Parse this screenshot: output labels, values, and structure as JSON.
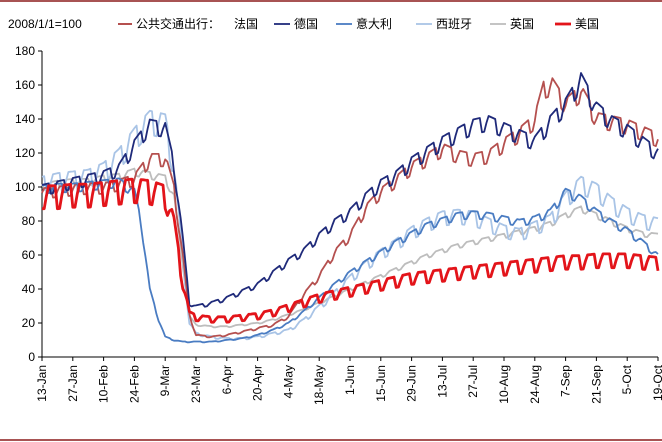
{
  "chart_data": {
    "type": "line",
    "unit_label": "2008/1/1=100",
    "ylim": [
      0,
      180
    ],
    "yticks": [
      0,
      20,
      40,
      60,
      80,
      100,
      120,
      140,
      160,
      180
    ],
    "xticks": [
      "13-Jan",
      "27-Jan",
      "10-Feb",
      "24-Feb",
      "9-Mar",
      "23-Mar",
      "6-Apr",
      "20-Apr",
      "4-May",
      "18-May",
      "1-Jun",
      "15-Jun",
      "29-Jun",
      "13-Jul",
      "27-Jul",
      "10-Aug",
      "24-Aug",
      "7-Sep",
      "21-Sep",
      "5-Oct",
      "19-Oct"
    ],
    "xlim": [
      0,
      280
    ],
    "legend_title": "公共交通出行：",
    "series": [
      {
        "name": "法国",
        "color": "#b5504f",
        "width": 1.8,
        "x": [
          0,
          7,
          14,
          21,
          28,
          35,
          42,
          49,
          56,
          60,
          64,
          67,
          70,
          77,
          84,
          91,
          98,
          105,
          112,
          119,
          126,
          133,
          140,
          147,
          154,
          161,
          168,
          175,
          182,
          189,
          196,
          203,
          210,
          217,
          224,
          228,
          232,
          238,
          245,
          252,
          259,
          266,
          273,
          280
        ],
        "y": [
          98,
          99,
          100,
          101,
          101,
          103,
          106,
          118,
          118,
          100,
          60,
          25,
          13,
          12,
          13,
          15,
          17,
          19,
          24,
          37,
          48,
          62,
          72,
          88,
          98,
          105,
          113,
          118,
          124,
          120,
          118,
          120,
          127,
          133,
          141,
          160,
          162,
          150,
          158,
          142,
          140,
          138,
          134,
          130
        ]
      },
      {
        "name": "德国",
        "color": "#1f2a7a",
        "width": 1.8,
        "x": [
          0,
          7,
          14,
          21,
          28,
          35,
          42,
          49,
          56,
          60,
          64,
          67,
          70,
          77,
          84,
          91,
          98,
          105,
          112,
          119,
          126,
          133,
          140,
          147,
          154,
          161,
          168,
          175,
          182,
          189,
          196,
          203,
          210,
          217,
          224,
          231,
          238,
          245,
          252,
          259,
          266,
          273,
          280
        ],
        "y": [
          100,
          102,
          104,
          106,
          108,
          112,
          126,
          138,
          136,
          114,
          70,
          32,
          30,
          32,
          35,
          39,
          43,
          50,
          57,
          63,
          72,
          80,
          86,
          95,
          103,
          108,
          116,
          122,
          128,
          133,
          138,
          140,
          136,
          132,
          128,
          140,
          150,
          165,
          148,
          140,
          135,
          128,
          121
        ]
      },
      {
        "name": "意大利",
        "color": "#4a7cc2",
        "width": 1.8,
        "x": [
          0,
          7,
          14,
          21,
          28,
          35,
          42,
          45,
          49,
          53,
          56,
          60,
          64,
          70,
          77,
          84,
          91,
          98,
          105,
          112,
          119,
          126,
          133,
          140,
          147,
          154,
          161,
          168,
          175,
          182,
          189,
          196,
          203,
          210,
          217,
          224,
          231,
          238,
          245,
          252,
          259,
          266,
          273,
          280
        ],
        "y": [
          100,
          101,
          101,
          102,
          103,
          104,
          98,
          80,
          40,
          22,
          12,
          10,
          9,
          9,
          9,
          10,
          11,
          13,
          16,
          20,
          27,
          35,
          43,
          50,
          56,
          62,
          68,
          73,
          78,
          81,
          84,
          85,
          84,
          82,
          80,
          82,
          86,
          98,
          94,
          86,
          80,
          75,
          68,
          60
        ]
      },
      {
        "name": "西班牙",
        "color": "#a9c4e6",
        "width": 1.8,
        "x": [
          0,
          7,
          14,
          21,
          28,
          35,
          42,
          49,
          56,
          60,
          64,
          67,
          70,
          77,
          84,
          91,
          98,
          105,
          112,
          119,
          126,
          133,
          140,
          147,
          154,
          161,
          168,
          175,
          182,
          189,
          196,
          203,
          210,
          217,
          224,
          231,
          238,
          245,
          252,
          259,
          266,
          273,
          280
        ],
        "y": [
          104,
          106,
          107,
          108,
          112,
          120,
          132,
          142,
          140,
          112,
          60,
          20,
          14,
          12,
          11,
          11,
          12,
          14,
          16,
          22,
          30,
          38,
          47,
          55,
          62,
          68,
          75,
          80,
          84,
          85,
          84,
          80,
          76,
          74,
          78,
          82,
          95,
          104,
          100,
          92,
          86,
          82,
          80
        ]
      },
      {
        "name": "英国",
        "color": "#bdbdbd",
        "width": 1.8,
        "x": [
          0,
          7,
          14,
          21,
          28,
          35,
          42,
          49,
          56,
          60,
          64,
          67,
          70,
          77,
          84,
          91,
          98,
          105,
          112,
          119,
          126,
          133,
          140,
          147,
          154,
          161,
          168,
          175,
          182,
          189,
          196,
          203,
          210,
          217,
          224,
          231,
          238,
          245,
          252,
          259,
          266,
          273,
          280
        ],
        "y": [
          101,
          103,
          104,
          104,
          106,
          107,
          110,
          108,
          106,
          95,
          55,
          24,
          19,
          18,
          18,
          19,
          20,
          22,
          25,
          28,
          32,
          36,
          40,
          44,
          48,
          52,
          56,
          60,
          63,
          66,
          68,
          70,
          72,
          74,
          76,
          79,
          84,
          88,
          84,
          80,
          76,
          73,
          72
        ]
      },
      {
        "name": "美国",
        "color": "#e3141a",
        "width": 2.8,
        "x": [
          0,
          7,
          14,
          21,
          28,
          35,
          42,
          49,
          56,
          60,
          64,
          67,
          70,
          77,
          84,
          91,
          98,
          105,
          112,
          119,
          126,
          133,
          140,
          147,
          154,
          161,
          168,
          175,
          182,
          189,
          196,
          203,
          210,
          217,
          224,
          231,
          238,
          245,
          252,
          259,
          266,
          273,
          280
        ],
        "y": [
          98,
          98,
          99,
          99,
          100,
          101,
          102,
          101,
          98,
          80,
          45,
          26,
          24,
          23,
          23,
          24,
          25,
          27,
          30,
          33,
          36,
          38,
          40,
          42,
          44,
          46,
          48,
          49,
          50,
          51,
          52,
          53,
          54,
          55,
          56,
          57,
          58,
          58,
          59,
          59,
          59,
          58,
          57
        ]
      }
    ]
  }
}
